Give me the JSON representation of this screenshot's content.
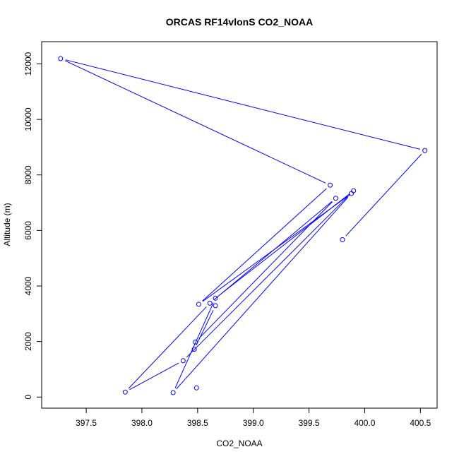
{
  "chart_data": {
    "type": "line",
    "title": "ORCAS RF14vlonS CO2_NOAA",
    "xlabel": "CO2_NOAA",
    "ylabel": "Altitude (m)",
    "xlim": [
      397.1,
      400.65
    ],
    "ylim": [
      -400,
      12800
    ],
    "x_ticks": [
      397.5,
      398.0,
      398.5,
      399.0,
      399.5,
      400.0,
      400.5
    ],
    "x_tick_labels": [
      "397.5",
      "398.0",
      "398.5",
      "399.0",
      "399.5",
      "400.0",
      "400.5"
    ],
    "y_ticks": [
      0,
      2000,
      4000,
      6000,
      8000,
      10000,
      12000
    ],
    "y_tick_labels": [
      "0",
      "2000",
      "4000",
      "6000",
      "8000",
      "10000",
      "12000"
    ],
    "grid": false,
    "series": [
      {
        "color": "#0000ff",
        "marker": "open-circle",
        "x": [
          399.8,
          400.54,
          397.27,
          399.69,
          398.51,
          399.88,
          398.28,
          398.66,
          399.9,
          398.37,
          397.85,
          398.61,
          399.74,
          398.48,
          398.47,
          398.66
        ],
        "y": [
          5670,
          8880,
          12190,
          7630,
          3340,
          7330,
          160,
          3560,
          7430,
          1310,
          180,
          3380,
          7160,
          1980,
          1720,
          3290
        ]
      }
    ]
  },
  "extra_points": {
    "x": [
      398.49
    ],
    "y": [
      330
    ]
  },
  "colors": {
    "series": "#0000ff",
    "axis": "#000000",
    "background": "#ffffff"
  }
}
